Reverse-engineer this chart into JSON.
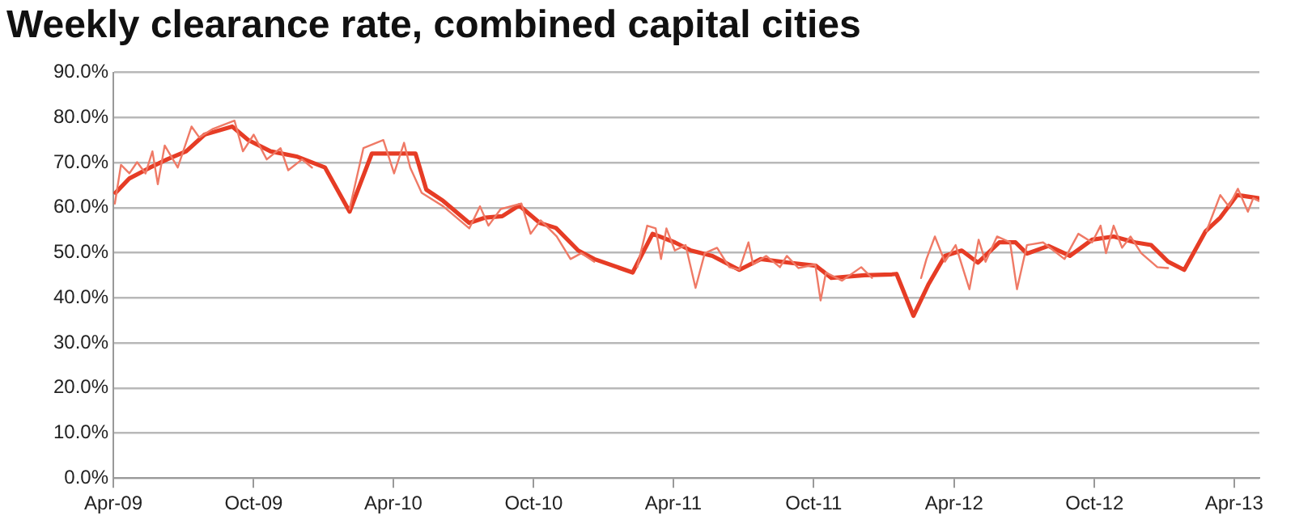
{
  "chart_data": {
    "type": "line",
    "title": "Weekly clearance rate, combined capital cities",
    "xlim": [
      "2009-04-01",
      "2013-05-04"
    ],
    "xticks": [
      {
        "value": "2009-04",
        "label": "Apr-09"
      },
      {
        "value": "2009-10",
        "label": "Oct-09"
      },
      {
        "value": "2010-04",
        "label": "Apr-10"
      },
      {
        "value": "2010-10",
        "label": "Oct-10"
      },
      {
        "value": "2011-04",
        "label": "Apr-11"
      },
      {
        "value": "2011-10",
        "label": "Oct-11"
      },
      {
        "value": "2012-04",
        "label": "Apr-12"
      },
      {
        "value": "2012-10",
        "label": "Oct-12"
      },
      {
        "value": "2013-04",
        "label": "Apr-13"
      }
    ],
    "ylim": [
      0,
      90
    ],
    "yticks": [
      {
        "value": 0,
        "label": "0.0%"
      },
      {
        "value": 10,
        "label": "10.0%"
      },
      {
        "value": 20,
        "label": "20.0%"
      },
      {
        "value": 30,
        "label": "30.0%"
      },
      {
        "value": 40,
        "label": "40.0%"
      },
      {
        "value": 50,
        "label": "50.0%"
      },
      {
        "value": 60,
        "label": "60.0%"
      },
      {
        "value": 70,
        "label": "70.0%"
      },
      {
        "value": 80,
        "label": "80.0%"
      },
      {
        "value": 90,
        "label": "90.0%"
      }
    ],
    "grid": "y",
    "legend": false,
    "marker": "none",
    "line_style": "solid",
    "series": [
      {
        "color": "#ef7a66",
        "x": [
          "2009-04-03",
          "2009-04-11",
          "2009-04-22",
          "2009-05-02",
          "2009-05-13",
          "2009-05-22",
          "2009-05-29",
          "2009-06-07",
          "2009-06-24",
          "2009-07-12",
          "2009-07-22",
          "2009-08-09",
          "2009-09-06",
          "2009-09-17",
          "2009-10-01",
          "2009-10-18",
          "2009-11-05",
          "2009-11-15",
          "2009-12-03",
          "2009-12-16",
          "2010-01-10",
          "2010-02-03",
          "2010-02-21",
          "2010-03-19",
          "2010-04-02",
          "2010-04-15",
          "2010-04-23",
          "2010-05-08",
          "2010-06-05",
          "2010-07-09",
          "2010-07-23",
          "2010-08-03",
          "2010-08-19",
          "2010-09-15",
          "2010-09-27",
          "2010-10-10",
          "2010-10-31",
          "2010-11-18",
          "2010-12-02",
          "2010-12-19",
          "2011-01-15",
          "2011-02-13",
          "2011-02-26",
          "2011-03-09",
          "2011-03-16",
          "2011-03-23",
          "2011-04-03",
          "2011-04-17",
          "2011-04-30",
          "2011-05-12",
          "2011-05-28",
          "2011-06-13",
          "2011-06-26",
          "2011-07-08",
          "2011-07-14",
          "2011-07-31",
          "2011-08-18",
          "2011-08-27",
          "2011-09-11",
          "2011-10-03",
          "2011-10-10",
          "2011-10-17",
          "2011-11-07",
          "2011-12-02",
          "2011-12-16",
          "2012-01-15",
          "2012-02-18",
          "2012-02-25",
          "2012-03-07",
          "2012-03-20",
          "2012-04-03",
          "2012-04-21",
          "2012-05-03",
          "2012-05-12",
          "2012-05-27",
          "2012-06-13",
          "2012-06-22",
          "2012-07-05",
          "2012-07-26",
          "2012-08-23",
          "2012-09-10",
          "2012-09-28",
          "2012-10-09",
          "2012-10-16",
          "2012-10-26",
          "2012-11-06",
          "2012-11-17",
          "2012-12-01",
          "2012-12-22",
          "2013-01-05",
          "2013-02-01",
          "2013-02-24",
          "2013-03-14",
          "2013-03-25",
          "2013-04-06",
          "2013-04-19",
          "2013-04-26",
          "2013-05-03"
        ],
        "values": [
          60.9,
          69.5,
          67.6,
          70.1,
          67.6,
          72.5,
          65.2,
          73.8,
          68.9,
          78,
          75.6,
          77.5,
          79.3,
          72.5,
          76.2,
          70.7,
          73.2,
          68.3,
          70.7,
          68.9,
          null,
          59.7,
          73.2,
          75,
          67.6,
          74.4,
          68.9,
          63.3,
          60.3,
          55.4,
          60.3,
          56,
          59.7,
          60.9,
          54.2,
          57.2,
          53.6,
          48.6,
          49.9,
          48,
          null,
          46.8,
          56,
          55.4,
          48.6,
          55.4,
          50.5,
          51.7,
          42.2,
          49.9,
          51.1,
          46.8,
          46.2,
          52.3,
          47.4,
          49.3,
          46.8,
          49.3,
          46.6,
          47.4,
          39.4,
          45.6,
          43.8,
          46.8,
          44.4,
          null,
          44.4,
          48.6,
          53.6,
          48,
          51.7,
          41.9,
          52.9,
          48,
          53.6,
          52.3,
          41.9,
          51.7,
          52.3,
          48.6,
          54.2,
          52.3,
          56,
          49.9,
          56,
          51.1,
          53.6,
          49.9,
          46.8,
          46.6,
          null,
          54.8,
          62.8,
          60.3,
          64.2,
          59.1,
          62.1,
          61.5
        ]
      },
      {
        "color": "#e63c25",
        "x": [
          "2009-04-04",
          "2009-04-22",
          "2009-05-19",
          "2009-06-10",
          "2009-07-05",
          "2009-07-29",
          "2009-09-03",
          "2009-09-24",
          "2009-10-23",
          "2009-11-27",
          "2010-01-02",
          "2010-02-03",
          "2010-03-04",
          "2010-04-09",
          "2010-04-30",
          "2010-05-14",
          "2010-06-05",
          "2010-07-09",
          "2010-07-30",
          "2010-08-21",
          "2010-09-12",
          "2010-10-09",
          "2010-10-30",
          "2010-11-28",
          "2010-12-19",
          "2011-02-07",
          "2011-03-05",
          "2011-04-03",
          "2011-04-24",
          "2011-05-22",
          "2011-06-26",
          "2011-07-24",
          "2011-08-29",
          "2011-10-04",
          "2011-10-24",
          "2011-12-06",
          "2012-01-11",
          "2012-01-17",
          "2012-02-08",
          "2012-02-28",
          "2012-03-20",
          "2012-04-11",
          "2012-05-02",
          "2012-05-30",
          "2012-06-20",
          "2012-07-05",
          "2012-08-02",
          "2012-08-30",
          "2012-09-28",
          "2012-10-26",
          "2012-11-23",
          "2012-12-14",
          "2013-01-05",
          "2013-01-26",
          "2013-02-23",
          "2013-03-14",
          "2013-04-05",
          "2013-05-03"
        ],
        "values": [
          63.3,
          66.5,
          68.9,
          70.7,
          72.5,
          76.2,
          78,
          75,
          72.5,
          71.3,
          68.9,
          59.1,
          72,
          72,
          72,
          64,
          61.5,
          56.6,
          57.8,
          58.1,
          60.5,
          56.6,
          55.5,
          50.5,
          48.6,
          45.6,
          54.2,
          52.3,
          50.5,
          49.3,
          46.2,
          48.6,
          47.8,
          47.1,
          44.4,
          45,
          45.2,
          45.3,
          36,
          43.1,
          49.3,
          50.5,
          47.8,
          52.3,
          52.3,
          49.8,
          51.5,
          49.3,
          52.9,
          53.6,
          52.3,
          51.7,
          48,
          46.2,
          54.8,
          57.8,
          62.8,
          62.1
        ]
      }
    ]
  }
}
